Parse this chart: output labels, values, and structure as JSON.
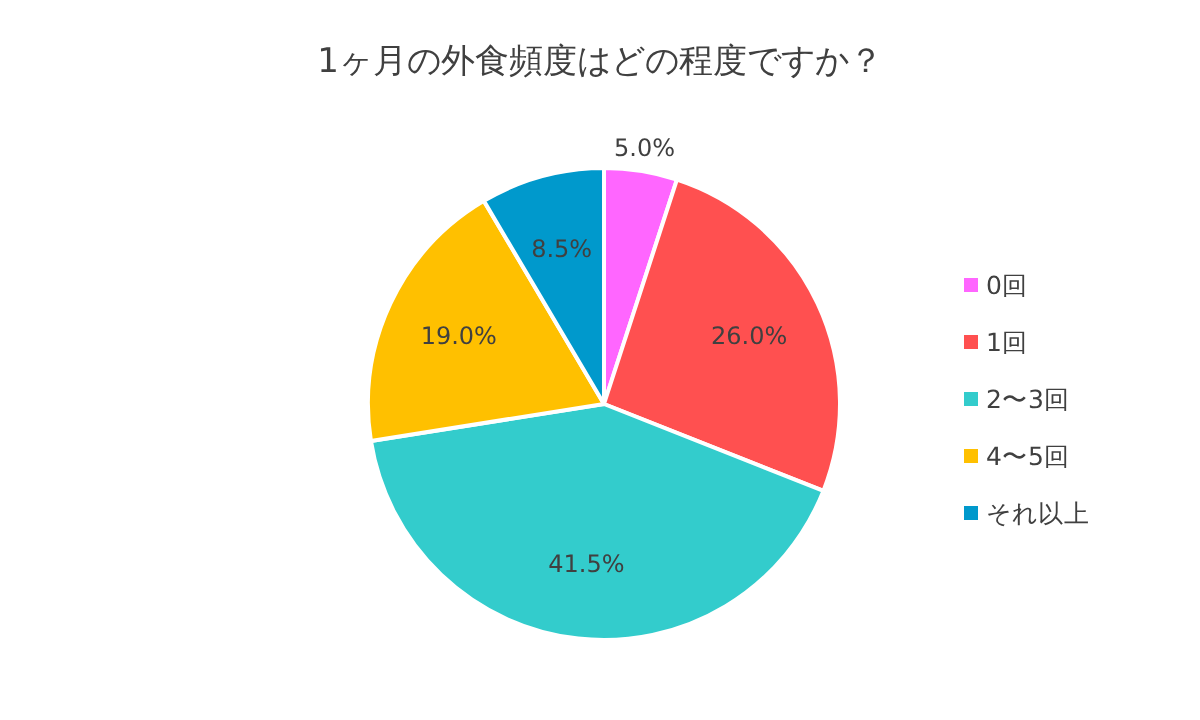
{
  "chart_data": {
    "type": "pie",
    "title": "1ヶ月の外食頻度はどの程度ですか？",
    "categories": [
      "0回",
      "1回",
      "2〜3回",
      "4〜5回",
      "それ以上"
    ],
    "values": [
      5,
      26,
      41.5,
      19,
      8.5
    ],
    "colors": [
      "#ff66ff",
      "#ff5050",
      "#33cccc",
      "#ffc000",
      "#0099cc"
    ],
    "value_labels": [
      "5.0%",
      "26.0%",
      "41.5%",
      "19.0%",
      "8.5%"
    ],
    "legend": "right"
  }
}
